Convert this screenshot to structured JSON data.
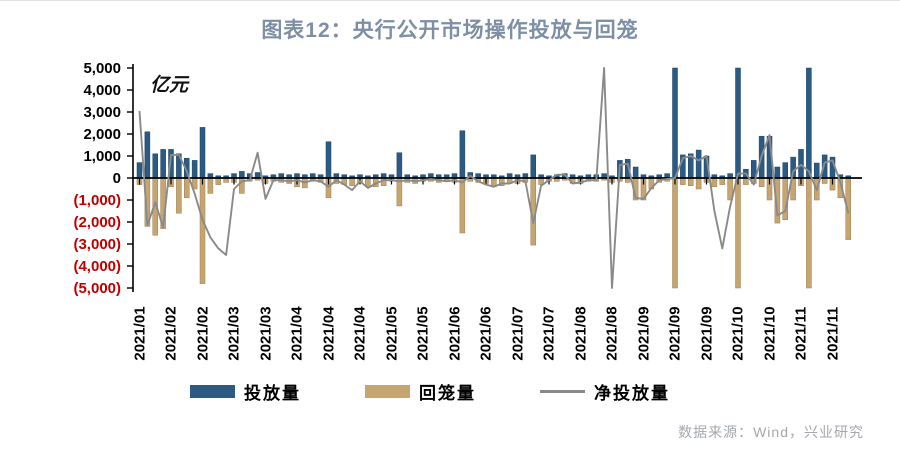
{
  "title": "图表12：央行公开市场操作投放与回笼",
  "unit_label": "亿元",
  "source": "数据来源：Wind，兴业研究",
  "colors": {
    "title": "#7e8ea5",
    "injection_bar": "#2b5a82",
    "injection_stroke": "#1d4265",
    "withdrawal_bar": "#c7a571",
    "withdrawal_stroke": "#9d7e4e",
    "net_line": "#8a8a8a",
    "axis": "#000000",
    "negative_tick_label": "#c00000",
    "source_text": "#a3a8ae"
  },
  "legend": [
    {
      "label": "投放量",
      "type": "bar",
      "color": "#2b5a82"
    },
    {
      "label": "回笼量",
      "type": "bar",
      "color": "#c7a571"
    },
    {
      "label": "净投放量",
      "type": "line",
      "color": "#8a8a8a"
    }
  ],
  "y_axis": {
    "ticks": [
      {
        "label": "5,000",
        "value": 5000
      },
      {
        "label": "4,000",
        "value": 4000
      },
      {
        "label": "3,000",
        "value": 3000
      },
      {
        "label": "2,000",
        "value": 2000
      },
      {
        "label": "1,000",
        "value": 1000
      },
      {
        "label": "0",
        "value": 0
      },
      {
        "label": "(1,000)",
        "value": -1000
      },
      {
        "label": "(2,000)",
        "value": -2000
      },
      {
        "label": "(3,000)",
        "value": -3000
      },
      {
        "label": "(4,000)",
        "value": -4000
      },
      {
        "label": "(5,000)",
        "value": -5000
      }
    ]
  },
  "chart_data": {
    "type": "bar",
    "note": "dual bar series with overlaid net line; values in 亿元, clipped to ±5000; x labels shown every 4th point",
    "ylim": [
      -5000,
      5000
    ],
    "x_labels": [
      "2021/01",
      "2021/02",
      "2021/02",
      "2021/03",
      "2021/03",
      "2021/04",
      "2021/04",
      "2021/04",
      "2021/05",
      "2021/05",
      "2021/06",
      "2021/06",
      "2021/07",
      "2021/07",
      "2021/08",
      "2021/08",
      "2021/09",
      "2021/09",
      "2021/09",
      "2021/10",
      "2021/10",
      "2021/11",
      "2021/11"
    ],
    "label_every": 4,
    "series": [
      {
        "name": "投放量",
        "type": "bar",
        "values": [
          700,
          2100,
          1100,
          1300,
          1300,
          1100,
          900,
          800,
          2300,
          200,
          100,
          100,
          200,
          300,
          200,
          250,
          100,
          150,
          200,
          150,
          200,
          150,
          200,
          150,
          1650,
          200,
          150,
          100,
          150,
          100,
          150,
          200,
          150,
          1150,
          150,
          100,
          150,
          200,
          150,
          150,
          200,
          2150,
          250,
          200,
          150,
          150,
          100,
          200,
          150,
          200,
          1050,
          150,
          100,
          150,
          200,
          150,
          100,
          150,
          150,
          200,
          100,
          800,
          850,
          500,
          150,
          100,
          150,
          200,
          5000,
          1050,
          1100,
          1270,
          1000,
          150,
          100,
          200,
          5000,
          400,
          800,
          1900,
          1900,
          500,
          700,
          950,
          1300,
          5000,
          680,
          1050,
          950,
          150,
          100
        ]
      },
      {
        "name": "回笼量",
        "type": "bar",
        "values": [
          -300,
          -2200,
          -2600,
          -2300,
          -400,
          -1600,
          -900,
          -500,
          -4800,
          -700,
          -300,
          -200,
          -200,
          -700,
          -150,
          -100,
          -250,
          -150,
          -200,
          -250,
          -400,
          -450,
          -150,
          -200,
          -900,
          -250,
          -300,
          -350,
          -200,
          -400,
          -400,
          -350,
          -150,
          -1270,
          -200,
          -250,
          -150,
          -150,
          -200,
          -150,
          -200,
          -2500,
          -150,
          -200,
          -250,
          -350,
          -350,
          -250,
          -250,
          -200,
          -3050,
          -300,
          -150,
          -150,
          -100,
          -250,
          -250,
          -150,
          -150,
          -100,
          -200,
          -150,
          -200,
          -1000,
          -1000,
          -500,
          -200,
          -150,
          -5000,
          -300,
          -350,
          -500,
          -200,
          -400,
          -300,
          -1000,
          -5000,
          -300,
          -250,
          -400,
          -1000,
          -2050,
          -1900,
          -1000,
          -350,
          -5000,
          -1000,
          -250,
          -550,
          -900,
          -2800
        ]
      },
      {
        "name": "净投放量",
        "type": "line",
        "values": [
          3050,
          -2150,
          -1100,
          -2250,
          1050,
          1050,
          300,
          -700,
          -1900,
          -2700,
          -3200,
          -3500,
          -500,
          -150,
          -100,
          1150,
          -950,
          -100,
          -100,
          -150,
          -100,
          -200,
          -100,
          -150,
          -400,
          -100,
          -300,
          -550,
          -150,
          -450,
          -250,
          -100,
          -100,
          -150,
          -100,
          -150,
          -100,
          -50,
          -100,
          -150,
          -100,
          -200,
          100,
          -150,
          -300,
          -400,
          -250,
          -250,
          -100,
          -150,
          -2050,
          -350,
          -100,
          150,
          150,
          -250,
          -200,
          -100,
          -100,
          5000,
          -5000,
          600,
          650,
          -900,
          -950,
          -450,
          -100,
          -50,
          0,
          900,
          1000,
          800,
          1000,
          -1500,
          -3200,
          -1300,
          200,
          200,
          -300,
          1000,
          1950,
          -1700,
          -1500,
          300,
          600,
          300,
          -550,
          700,
          800,
          -200,
          -1600
        ]
      }
    ]
  }
}
